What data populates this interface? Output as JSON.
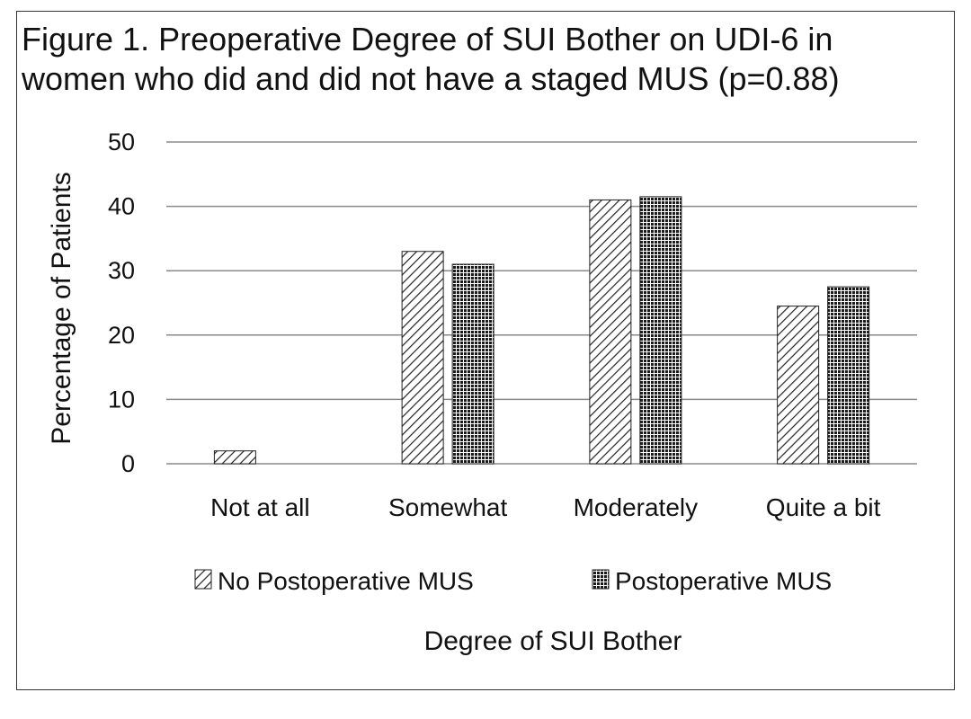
{
  "chart_data": {
    "type": "bar",
    "title_lines": [
      "Figure 1. Preoperative Degree of SUI Bother on UDI-6 in",
      "women who did and did not have a staged MUS  (p=0.88)"
    ],
    "xlabel": "Degree of SUI Bother",
    "ylabel": "Percentage of Patients",
    "ylim": [
      0,
      50
    ],
    "yticks": [
      0,
      10,
      20,
      30,
      40,
      50
    ],
    "categories": [
      "Not at all",
      "Somewhat",
      "Moderately",
      "Quite a bit"
    ],
    "series": [
      {
        "name": "No Postoperative MUS",
        "values": [
          2,
          33,
          41,
          24.5
        ],
        "pattern": "diagonal-hatch"
      },
      {
        "name": "Postoperative MUS",
        "values": [
          0,
          31,
          41.5,
          27.5
        ],
        "pattern": "dense-dots"
      }
    ],
    "grid": true,
    "legend_position": "bottom"
  }
}
